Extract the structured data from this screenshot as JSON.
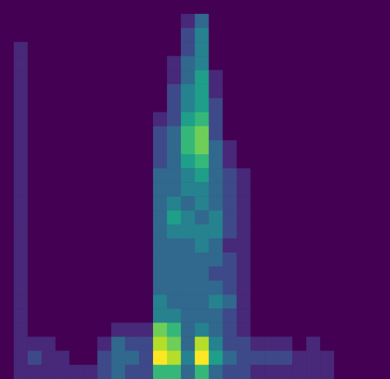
{
  "chart_data": {
    "type": "heatmap",
    "color": "viridis",
    "zlim": [
      0,
      9
    ],
    "tick_labels": false,
    "grid": false,
    "cells": [
      [
        0,
        0,
        0,
        0,
        0,
        0,
        0,
        0,
        0,
        0,
        0,
        0,
        0,
        0,
        0,
        0,
        0,
        0,
        0,
        0,
        0,
        0,
        0,
        0,
        0,
        0,
        0,
        0
      ],
      [
        0,
        0,
        0,
        0,
        0,
        0,
        0,
        0,
        0,
        0,
        0,
        0,
        0,
        1,
        3,
        0,
        0,
        0,
        0,
        0,
        0,
        0,
        0,
        0,
        0,
        0,
        0,
        0
      ],
      [
        0,
        0,
        0,
        0,
        0,
        0,
        0,
        0,
        0,
        0,
        0,
        0,
        0,
        2,
        4,
        0,
        0,
        0,
        0,
        0,
        0,
        0,
        0,
        0,
        0,
        0,
        0,
        0
      ],
      [
        0,
        1,
        0,
        0,
        0,
        0,
        0,
        0,
        0,
        0,
        0,
        0,
        0,
        2,
        4,
        0,
        0,
        0,
        0,
        0,
        0,
        0,
        0,
        0,
        0,
        0,
        0,
        0
      ],
      [
        0,
        1,
        0,
        0,
        0,
        0,
        0,
        0,
        0,
        0,
        0,
        0,
        1,
        3,
        4,
        0,
        0,
        0,
        0,
        0,
        0,
        0,
        0,
        0,
        0,
        0,
        0,
        0
      ],
      [
        0,
        1,
        0,
        0,
        0,
        0,
        0,
        0,
        0,
        0,
        0,
        0,
        1,
        3,
        5,
        1,
        0,
        0,
        0,
        0,
        0,
        0,
        0,
        0,
        0,
        0,
        0,
        0
      ],
      [
        0,
        1,
        0,
        0,
        0,
        0,
        0,
        0,
        0,
        0,
        0,
        0,
        2,
        4,
        5,
        1,
        0,
        0,
        0,
        0,
        0,
        0,
        0,
        0,
        0,
        0,
        0,
        0
      ],
      [
        0,
        1,
        0,
        0,
        0,
        0,
        0,
        0,
        0,
        0,
        0,
        0,
        2,
        4,
        5,
        2,
        0,
        0,
        0,
        0,
        0,
        0,
        0,
        0,
        0,
        0,
        0,
        0
      ],
      [
        0,
        1,
        0,
        0,
        0,
        0,
        0,
        0,
        0,
        0,
        0,
        1,
        2,
        5,
        6,
        2,
        0,
        0,
        0,
        0,
        0,
        0,
        0,
        0,
        0,
        0,
        0,
        0
      ],
      [
        0,
        1,
        0,
        0,
        0,
        0,
        0,
        0,
        0,
        0,
        0,
        2,
        3,
        6,
        7,
        2,
        0,
        0,
        0,
        0,
        0,
        0,
        0,
        0,
        0,
        0,
        0,
        0
      ],
      [
        0,
        1,
        0,
        0,
        0,
        0,
        0,
        0,
        0,
        0,
        0,
        2,
        3,
        6,
        7,
        3,
        1,
        0,
        0,
        0,
        0,
        0,
        0,
        0,
        0,
        0,
        0,
        0
      ],
      [
        0,
        1,
        0,
        0,
        0,
        0,
        0,
        0,
        0,
        0,
        0,
        2,
        3,
        5,
        6,
        3,
        1,
        0,
        0,
        0,
        0,
        0,
        0,
        0,
        0,
        0,
        0,
        0
      ],
      [
        0,
        1,
        0,
        0,
        0,
        0,
        0,
        0,
        0,
        0,
        0,
        3,
        3,
        4,
        5,
        3,
        2,
        1,
        0,
        0,
        0,
        0,
        0,
        0,
        0,
        0,
        0,
        0
      ],
      [
        0,
        1,
        0,
        0,
        0,
        0,
        0,
        0,
        0,
        0,
        0,
        3,
        3,
        4,
        4,
        3,
        2,
        1,
        0,
        0,
        0,
        0,
        0,
        0,
        0,
        0,
        0,
        0
      ],
      [
        0,
        1,
        0,
        0,
        0,
        0,
        0,
        0,
        0,
        0,
        0,
        3,
        4,
        3,
        4,
        3,
        2,
        1,
        0,
        0,
        0,
        0,
        0,
        0,
        0,
        0,
        0,
        0
      ],
      [
        0,
        1,
        0,
        0,
        0,
        0,
        0,
        0,
        0,
        0,
        0,
        3,
        5,
        4,
        3,
        4,
        2,
        1,
        0,
        0,
        0,
        0,
        0,
        0,
        0,
        0,
        0,
        0
      ],
      [
        0,
        1,
        0,
        0,
        0,
        0,
        0,
        0,
        0,
        0,
        0,
        3,
        4,
        4,
        4,
        4,
        2,
        1,
        0,
        0,
        0,
        0,
        0,
        0,
        0,
        0,
        0,
        0
      ],
      [
        0,
        1,
        0,
        0,
        0,
        0,
        0,
        0,
        0,
        0,
        0,
        3,
        3,
        3,
        4,
        3,
        1,
        1,
        0,
        0,
        0,
        0,
        0,
        0,
        0,
        0,
        0,
        0
      ],
      [
        0,
        1,
        0,
        0,
        0,
        0,
        0,
        0,
        0,
        0,
        0,
        3,
        3,
        3,
        3,
        3,
        2,
        1,
        0,
        0,
        0,
        0,
        0,
        0,
        0,
        0,
        0,
        0
      ],
      [
        0,
        1,
        0,
        0,
        0,
        0,
        0,
        0,
        0,
        0,
        0,
        3,
        3,
        3,
        3,
        2,
        2,
        1,
        0,
        0,
        0,
        0,
        0,
        0,
        0,
        0,
        0,
        0
      ],
      [
        0,
        1,
        0,
        0,
        0,
        0,
        0,
        0,
        0,
        0,
        0,
        3,
        3,
        3,
        3,
        3,
        2,
        1,
        0,
        0,
        0,
        0,
        0,
        0,
        0,
        0,
        0,
        0
      ],
      [
        0,
        1,
        0,
        0,
        0,
        0,
        0,
        0,
        0,
        0,
        0,
        4,
        3,
        3,
        3,
        4,
        3,
        1,
        0,
        0,
        0,
        0,
        0,
        0,
        0,
        0,
        0,
        0
      ],
      [
        0,
        1,
        0,
        0,
        0,
        0,
        0,
        0,
        0,
        0,
        0,
        4,
        4,
        3,
        3,
        3,
        2,
        1,
        0,
        0,
        0,
        0,
        0,
        0,
        0,
        0,
        0,
        0
      ],
      [
        0,
        1,
        0,
        0,
        0,
        0,
        0,
        0,
        1,
        1,
        1,
        7,
        6,
        3,
        4,
        3,
        2,
        1,
        0,
        0,
        0,
        0,
        0,
        0,
        0,
        0,
        0,
        0
      ],
      [
        0,
        1,
        1,
        1,
        0,
        0,
        0,
        1,
        3,
        2,
        2,
        8,
        7,
        3,
        8,
        4,
        2,
        2,
        1,
        1,
        1,
        0,
        1,
        0,
        0,
        0,
        0,
        0
      ],
      [
        0,
        1,
        2,
        1,
        1,
        0,
        0,
        2,
        3,
        3,
        2,
        9,
        8,
        4,
        9,
        5,
        3,
        2,
        2,
        2,
        2,
        1,
        1,
        1,
        0,
        0,
        0,
        0
      ],
      [
        0,
        1,
        1,
        1,
        1,
        1,
        1,
        2,
        3,
        2,
        2,
        6,
        6,
        3,
        6,
        3,
        2,
        2,
        1,
        1,
        1,
        1,
        1,
        1,
        0,
        0,
        0,
        0
      ]
    ]
  }
}
